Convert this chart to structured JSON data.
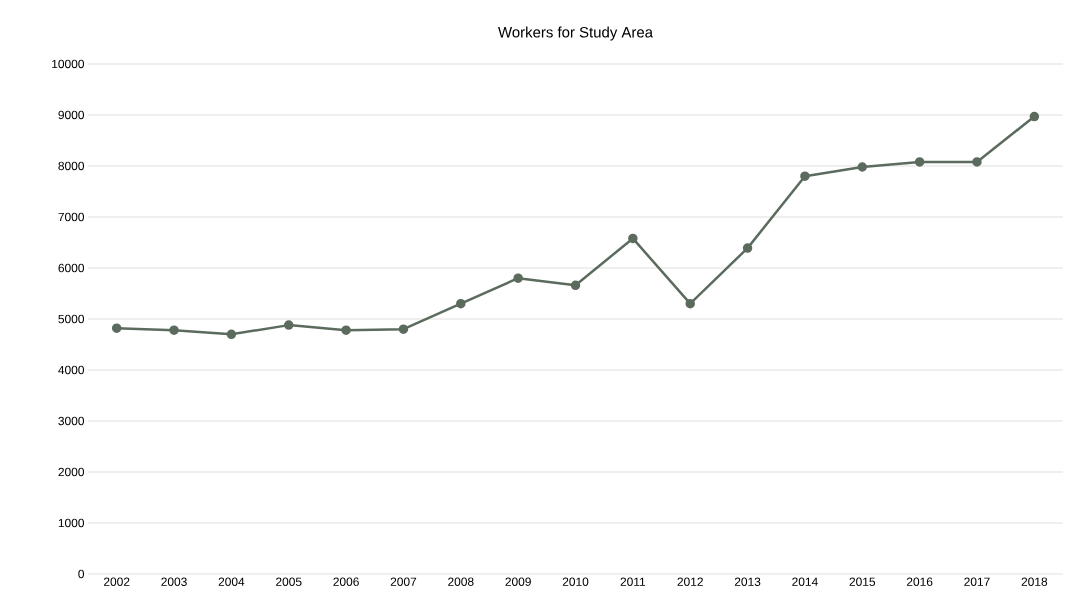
{
  "chart_data": {
    "type": "line",
    "title": "Workers for Study Area",
    "categories": [
      "2002",
      "2003",
      "2004",
      "2005",
      "2006",
      "2007",
      "2008",
      "2009",
      "2010",
      "2011",
      "2012",
      "2013",
      "2014",
      "2015",
      "2016",
      "2017",
      "2018"
    ],
    "series": [
      {
        "color": "#5b6b5e",
        "values": [
          4820,
          4780,
          4700,
          4880,
          4780,
          4800,
          5300,
          5800,
          5660,
          6580,
          5300,
          6390,
          7800,
          7980,
          8080,
          8080,
          8970
        ]
      }
    ],
    "ylim": [
      0,
      10000
    ],
    "yticks": [
      0,
      1000,
      2000,
      3000,
      4000,
      5000,
      6000,
      7000,
      8000,
      9000,
      10000
    ],
    "grid": "y",
    "marker": "circle",
    "line_style": "solid"
  }
}
